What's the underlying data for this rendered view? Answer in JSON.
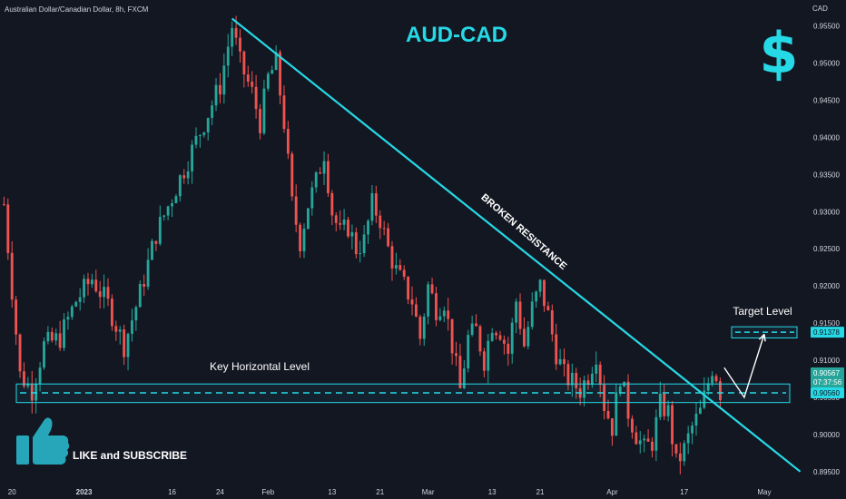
{
  "header": {
    "symbol_line": "Australian Dollar/Canadian Dollar, 8h, FXCM"
  },
  "overlay": {
    "title": "AUD-CAD",
    "resistance_label": "BROKEN RESISTANCE",
    "key_level_label": "Key Horizontal Level",
    "target_label": "Target Level",
    "cta_label": "LIKE and SUBSCRIBE",
    "logo_icon": "dollar-sign-icon",
    "thumb_icon": "thumbs-up-icon"
  },
  "colors": {
    "background": "#131722",
    "bull": "#26a69a",
    "bear": "#ef5350",
    "accent": "#26d9e6",
    "text": "#d1d4dc"
  },
  "chart_data": {
    "type": "candlestick",
    "currency_label": "CAD",
    "ylim": [
      0.894,
      0.9585
    ],
    "y_ticks": [
      {
        "label": "0.95500",
        "value": 0.955
      },
      {
        "label": "0.95000",
        "value": 0.95
      },
      {
        "label": "0.94500",
        "value": 0.945
      },
      {
        "label": "0.94000",
        "value": 0.94
      },
      {
        "label": "0.93500",
        "value": 0.935
      },
      {
        "label": "0.93000",
        "value": 0.93
      },
      {
        "label": "0.92500",
        "value": 0.925
      },
      {
        "label": "0.92000",
        "value": 0.92
      },
      {
        "label": "0.91500",
        "value": 0.915
      },
      {
        "label": "0.91000",
        "value": 0.91
      },
      {
        "label": "0.90500",
        "value": 0.905
      },
      {
        "label": "0.90000",
        "value": 0.9
      },
      {
        "label": "0.89500",
        "value": 0.895
      }
    ],
    "x_ticks": [
      {
        "label": "20",
        "bar": 2,
        "bold": false
      },
      {
        "label": "2023",
        "bar": 20,
        "bold": true
      },
      {
        "label": "16",
        "bar": 42,
        "bold": false
      },
      {
        "label": "24",
        "bar": 54,
        "bold": false
      },
      {
        "label": "Feb",
        "bar": 66,
        "bold": false
      },
      {
        "label": "13",
        "bar": 82,
        "bold": false
      },
      {
        "label": "21",
        "bar": 94,
        "bold": false
      },
      {
        "label": "Mar",
        "bar": 106,
        "bold": false
      },
      {
        "label": "13",
        "bar": 122,
        "bold": false
      },
      {
        "label": "21",
        "bar": 134,
        "bold": false
      },
      {
        "label": "Apr",
        "bar": 152,
        "bold": false
      },
      {
        "label": "17",
        "bar": 170,
        "bold": false
      },
      {
        "label": "May",
        "bar": 190,
        "bold": false
      }
    ],
    "price_path": [
      [
        0,
        0.931
      ],
      [
        4,
        0.908
      ],
      [
        7,
        0.906
      ],
      [
        10,
        0.912
      ],
      [
        14,
        0.913
      ],
      [
        18,
        0.918
      ],
      [
        22,
        0.921
      ],
      [
        26,
        0.9175
      ],
      [
        30,
        0.912
      ],
      [
        34,
        0.919
      ],
      [
        38,
        0.927
      ],
      [
        42,
        0.932
      ],
      [
        46,
        0.937
      ],
      [
        50,
        0.942
      ],
      [
        54,
        0.947
      ],
      [
        57,
        0.955
      ],
      [
        59,
        0.95
      ],
      [
        62,
        0.946
      ],
      [
        64,
        0.942
      ],
      [
        66,
        0.948
      ],
      [
        68,
        0.95
      ],
      [
        70,
        0.942
      ],
      [
        72,
        0.931
      ],
      [
        74,
        0.926
      ],
      [
        76,
        0.931
      ],
      [
        78,
        0.934
      ],
      [
        80,
        0.938
      ],
      [
        82,
        0.93
      ],
      [
        84,
        0.927
      ],
      [
        86,
        0.928
      ],
      [
        88,
        0.925
      ],
      [
        90,
        0.926
      ],
      [
        92,
        0.931
      ],
      [
        94,
        0.929
      ],
      [
        96,
        0.925
      ],
      [
        98,
        0.922
      ],
      [
        100,
        0.92
      ],
      [
        102,
        0.918
      ],
      [
        104,
        0.913
      ],
      [
        106,
        0.92
      ],
      [
        108,
        0.917
      ],
      [
        110,
        0.918
      ],
      [
        112,
        0.912
      ],
      [
        114,
        0.906
      ],
      [
        116,
        0.913
      ],
      [
        118,
        0.914
      ],
      [
        120,
        0.91
      ],
      [
        122,
        0.915
      ],
      [
        124,
        0.914
      ],
      [
        126,
        0.911
      ],
      [
        128,
        0.918
      ],
      [
        130,
        0.912
      ],
      [
        132,
        0.917
      ],
      [
        134,
        0.92
      ],
      [
        136,
        0.916
      ],
      [
        138,
        0.911
      ],
      [
        140,
        0.908
      ],
      [
        142,
        0.907
      ],
      [
        144,
        0.906
      ],
      [
        146,
        0.908
      ],
      [
        148,
        0.911
      ],
      [
        150,
        0.904
      ],
      [
        152,
        0.901
      ],
      [
        154,
        0.908
      ],
      [
        156,
        0.903
      ],
      [
        158,
        0.9
      ],
      [
        160,
        0.898
      ],
      [
        162,
        0.899
      ],
      [
        164,
        0.904
      ],
      [
        166,
        0.903
      ],
      [
        168,
        0.896
      ],
      [
        170,
        0.898
      ],
      [
        172,
        0.901
      ],
      [
        174,
        0.903
      ],
      [
        176,
        0.907
      ],
      [
        177,
        0.909
      ],
      [
        178,
        0.908
      ],
      [
        179,
        0.9057
      ]
    ],
    "bars_total": 180,
    "x_domain": [
      -1,
      200
    ],
    "key_horizontal_level": {
      "value": 0.9056,
      "label": "0.90560",
      "zone": [
        0.9043,
        0.9068
      ]
    },
    "target_level": {
      "value": 0.91378,
      "label": "0.91378",
      "zone": [
        0.913,
        0.9145
      ]
    },
    "current_price": {
      "label": "0.90567",
      "countdown": "07:37:56"
    },
    "resistance_line": {
      "from": [
        57,
        0.956
      ],
      "to": [
        199,
        0.895
      ]
    },
    "projection_path": [
      [
        180,
        0.909
      ],
      [
        185,
        0.905
      ],
      [
        190,
        0.9135
      ]
    ]
  }
}
